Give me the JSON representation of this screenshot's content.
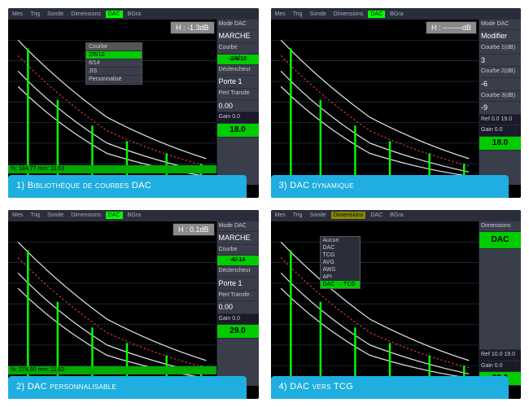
{
  "colors": {
    "bg": "#000000",
    "panel_bg": "#3a3d4a",
    "menubar_bg": "#2a2d3a",
    "green": "#00cc00",
    "bright_green": "#00ff00",
    "caption_bg": "#1FAEE0",
    "grid": "#1a3a4a",
    "curve_white": "#dedede",
    "curve_red": "#cc3333",
    "spike": "#00ff00"
  },
  "menubar": {
    "items": [
      "Mes",
      "Trig",
      "Sonde",
      "Dimensions",
      "DAC",
      "BGra"
    ]
  },
  "panel1": {
    "caption": "1) Bibliothèque de courbes DAC",
    "h_readout": "H : -1.3dB",
    "side": {
      "mode_label": "Mode DAC",
      "mode_value": "MARCHE",
      "courbe_label": "Courbe",
      "courbe_value": "-2/6/10",
      "declencheur": "Déclencheur",
      "porte": "Porte 1",
      "pert": "Pert Transfe",
      "pert_val": "0.00",
      "gain_label": "Gain    0.0",
      "gain_val": "18.0"
    },
    "library": {
      "header": "Courbe",
      "items": [
        "2/6/10",
        "6/14",
        "JIS",
        "Personnalisé"
      ],
      "selected": 0
    },
    "footer": "%: 184.77    mm: 11.63"
  },
  "panel2": {
    "caption": "2) DAC personnalisable",
    "h_readout": "H : 0.1dB",
    "side": {
      "mode_label": "Mode DAC",
      "mode_value": "MARCHE",
      "courbe_label": "Courbe",
      "courbe_value": "-6/-14",
      "declencheur": "Déclencheur",
      "porte": "Porte 1",
      "pert": "Pert Transfe",
      "pert_val": "0.00",
      "gain_label": "Gain    0.0",
      "gain_val": "29.0"
    },
    "footer": "%: 274.90    mm: 11.63"
  },
  "panel3": {
    "caption": "3) DAC dynamique",
    "h_readout": "H : --------dB",
    "side": {
      "mode_label": "Mode DAC",
      "mode_value": "Modifier",
      "c1_label": "Courbe 1(dB)",
      "c1_val": "3",
      "c2_label": "Courbe 2(dB)",
      "c2_val": "-6",
      "c3_label": "Courbe 3(dB)",
      "c3_val": "-9",
      "ref": "Ref  0.0  19.0",
      "gain_label": "Gain    0.0",
      "gain_val": "18.0"
    }
  },
  "panel4": {
    "caption": "4) DAC vers TCG",
    "side": {
      "dim_label": "Dimensions",
      "dim_value": "DAC",
      "ref": "Ref  10.0  19.0",
      "gain_label": "Gain    0.0",
      "gain_val": "29.0"
    },
    "dropdown": {
      "items": [
        "Aucun",
        "DAC",
        "TCG",
        "AVG",
        "AWS",
        "API",
        "DAC → TCG"
      ],
      "selected": 6
    }
  },
  "chart": {
    "curves": [
      "M10,20 Q50,60 100,95 Q150,120 200,135",
      "M10,35 Q50,75 100,108 Q150,130 200,142",
      "M10,50 Q50,90 100,120 Q150,138 200,148",
      "M10,65 Q50,103 100,130 Q150,145 200,152"
    ],
    "spikes_x": [
      20,
      50,
      85,
      120,
      160,
      195
    ],
    "spike_heights": [
      130,
      80,
      55,
      40,
      28,
      18
    ]
  }
}
